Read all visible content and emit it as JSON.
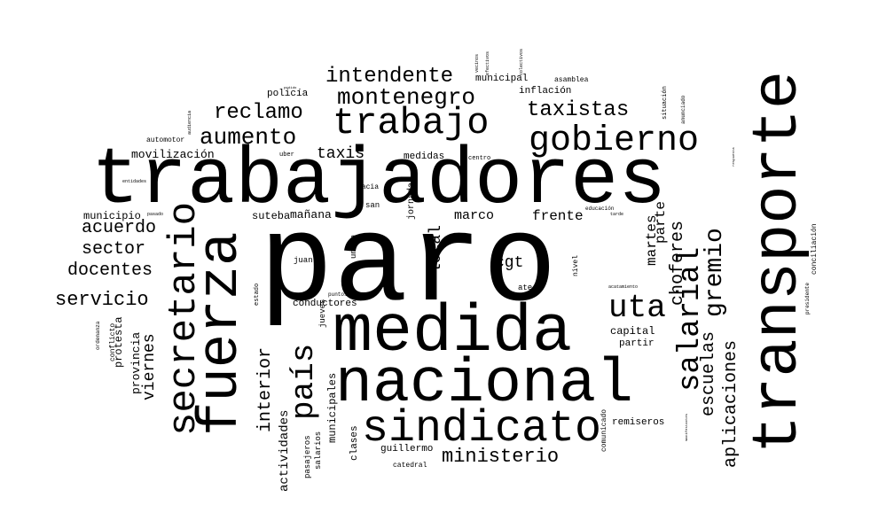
{
  "words": [
    {
      "text": "paro",
      "size": 140
    },
    {
      "text": "trabajadores",
      "size": 90
    },
    {
      "text": "transporte",
      "size": 72
    },
    {
      "text": "medida",
      "size": 75
    },
    {
      "text": "nacional",
      "size": 70
    },
    {
      "text": "fuerza",
      "size": 64
    },
    {
      "text": "sindicato",
      "size": 50
    },
    {
      "text": "secretario",
      "size": 44
    },
    {
      "text": "trabajo",
      "size": 42
    },
    {
      "text": "gobierno",
      "size": 40
    },
    {
      "text": "salarial",
      "size": 34
    },
    {
      "text": "país",
      "size": 36
    },
    {
      "text": "uta",
      "size": 36
    },
    {
      "text": "montenegro",
      "size": 26
    },
    {
      "text": "intendente",
      "size": 24
    },
    {
      "text": "reclamo",
      "size": 24
    },
    {
      "text": "aumento",
      "size": 26
    },
    {
      "text": "taxistas",
      "size": 24
    },
    {
      "text": "gremio",
      "size": 28
    },
    {
      "text": "ministerio",
      "size": 22
    },
    {
      "text": "choferes",
      "size": 20
    },
    {
      "text": "escuelas",
      "size": 20
    },
    {
      "text": "aplicaciones",
      "size": 20
    },
    {
      "text": "interior",
      "size": 20
    },
    {
      "text": "servicio",
      "size": 22
    },
    {
      "text": "docentes",
      "size": 20
    },
    {
      "text": "sector",
      "size": 20
    },
    {
      "text": "acuerdo",
      "size": 20
    },
    {
      "text": "viernes",
      "size": 18
    },
    {
      "text": "local",
      "size": 18
    },
    {
      "text": "cgt",
      "size": 18
    },
    {
      "text": "taxis",
      "size": 18
    },
    {
      "text": "martes",
      "size": 16
    },
    {
      "text": "parte",
      "size": 16
    },
    {
      "text": "marco",
      "size": 15
    },
    {
      "text": "frente",
      "size": 16
    },
    {
      "text": "mañana",
      "size": 13
    },
    {
      "text": "suteba",
      "size": 12
    },
    {
      "text": "movilización",
      "size": 13
    },
    {
      "text": "municipio",
      "size": 12
    },
    {
      "text": "provincia",
      "size": 13
    },
    {
      "text": "protesta",
      "size": 12
    },
    {
      "text": "actividades",
      "size": 14
    },
    {
      "text": "municipales",
      "size": 12
    },
    {
      "text": "clases",
      "size": 11
    },
    {
      "text": "capital",
      "size": 12
    },
    {
      "text": "partir",
      "size": 11
    },
    {
      "text": "remiseros",
      "size": 11
    },
    {
      "text": "guillermo",
      "size": 11
    },
    {
      "text": "conductores",
      "size": 11
    },
    {
      "text": "policía",
      "size": 11
    },
    {
      "text": "inflación",
      "size": 11
    },
    {
      "text": "municipal",
      "size": 11
    },
    {
      "text": "medidas",
      "size": 11
    },
    {
      "text": "jornada",
      "size": 10
    },
    {
      "text": "hacia",
      "size": 8
    },
    {
      "text": "san",
      "size": 9
    },
    {
      "text": "unión",
      "size": 9
    },
    {
      "text": "juan",
      "size": 9
    },
    {
      "text": "pasajeros",
      "size": 9
    },
    {
      "text": "salarios",
      "size": 9
    },
    {
      "text": "jueves",
      "size": 9
    },
    {
      "text": "catedral",
      "size": 8
    },
    {
      "text": "comunicado",
      "size": 8
    },
    {
      "text": "ate",
      "size": 9
    },
    {
      "text": "nivel",
      "size": 8
    },
    {
      "text": "conflicto",
      "size": 8
    },
    {
      "text": "ordenanza",
      "size": 6
    },
    {
      "text": "conciliación",
      "size": 8
    },
    {
      "text": "presidente",
      "size": 6
    },
    {
      "text": "situación",
      "size": 7
    },
    {
      "text": "anunciado",
      "size": 6
    },
    {
      "text": "asamblea",
      "size": 8
    },
    {
      "text": "uber",
      "size": 7
    },
    {
      "text": "centro",
      "size": 7
    },
    {
      "text": "automotor",
      "size": 8
    },
    {
      "text": "educación",
      "size": 6
    },
    {
      "text": "estado",
      "size": 7
    },
    {
      "text": "puntos",
      "size": 6
    },
    {
      "text": "entidades",
      "size": 5
    },
    {
      "text": "pasado",
      "size": 5
    },
    {
      "text": "tarde",
      "size": 5
    },
    {
      "text": "acatamiento",
      "size": 5
    },
    {
      "text": "audiencia",
      "size": 5
    },
    {
      "text": "efectivos",
      "size": 5
    },
    {
      "text": "vecinos",
      "size": 5
    },
    {
      "text": "colectivos",
      "size": 5
    },
    {
      "text": "manifestantes",
      "size": 4
    },
    {
      "text": "respuesta",
      "size": 4
    },
    {
      "text": "pedido",
      "size": 4
    }
  ]
}
